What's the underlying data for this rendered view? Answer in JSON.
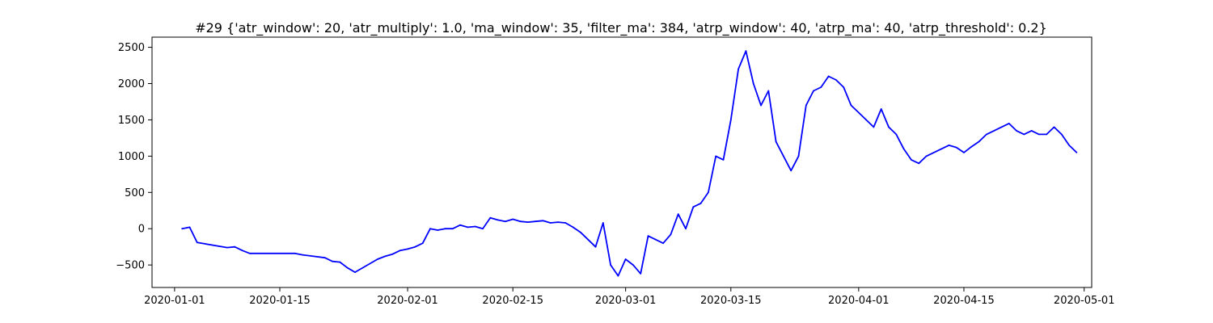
{
  "chart_data": {
    "type": "line",
    "title": "#29 {'atr_window': 20, 'atr_multiply': 1.0, 'ma_window': 35, 'filter_ma': 384, 'atrp_window': 40, 'atrp_ma': 40, 'atrp_threshold': 0.2}",
    "xlabel": "",
    "ylabel": "",
    "xlim": [
      "2019-12-29",
      "2020-05-02"
    ],
    "ylim": [
      -810,
      2640
    ],
    "x_ticks": [
      "2020-01-01",
      "2020-01-15",
      "2020-02-01",
      "2020-02-15",
      "2020-03-01",
      "2020-03-15",
      "2020-04-01",
      "2020-04-15",
      "2020-05-01"
    ],
    "y_ticks": [
      -500,
      0,
      500,
      1000,
      1500,
      2000,
      2500
    ],
    "grid": false,
    "colors": {
      "line": "#0000ff",
      "axes": "#000000",
      "background": "#ffffff"
    },
    "series": [
      {
        "x": [
          "2020-01-02",
          "2020-01-03",
          "2020-01-04",
          "2020-01-08",
          "2020-01-09",
          "2020-01-10",
          "2020-01-11",
          "2020-01-17",
          "2020-01-18",
          "2020-01-21",
          "2020-01-22",
          "2020-01-23",
          "2020-01-24",
          "2020-01-25",
          "2020-01-28",
          "2020-01-29",
          "2020-01-30",
          "2020-01-31",
          "2020-02-01",
          "2020-02-02",
          "2020-02-03",
          "2020-02-04",
          "2020-02-05",
          "2020-02-06",
          "2020-02-07",
          "2020-02-08",
          "2020-02-09",
          "2020-02-10",
          "2020-02-11",
          "2020-02-12",
          "2020-02-13",
          "2020-02-14",
          "2020-02-15",
          "2020-02-16",
          "2020-02-17",
          "2020-02-18",
          "2020-02-19",
          "2020-02-20",
          "2020-02-21",
          "2020-02-22",
          "2020-02-23",
          "2020-02-24",
          "2020-02-25",
          "2020-02-26",
          "2020-02-27",
          "2020-02-28",
          "2020-02-29",
          "2020-03-01",
          "2020-03-02",
          "2020-03-03",
          "2020-03-04",
          "2020-03-05",
          "2020-03-06",
          "2020-03-07",
          "2020-03-08",
          "2020-03-09",
          "2020-03-10",
          "2020-03-11",
          "2020-03-12",
          "2020-03-13",
          "2020-03-14",
          "2020-03-15",
          "2020-03-16",
          "2020-03-17",
          "2020-03-18",
          "2020-03-19",
          "2020-03-20",
          "2020-03-21",
          "2020-03-22",
          "2020-03-23",
          "2020-03-24",
          "2020-03-25",
          "2020-03-26",
          "2020-03-27",
          "2020-03-28",
          "2020-03-29",
          "2020-03-30",
          "2020-03-31",
          "2020-04-01",
          "2020-04-02",
          "2020-04-03",
          "2020-04-04",
          "2020-04-05",
          "2020-04-06",
          "2020-04-07",
          "2020-04-08",
          "2020-04-09",
          "2020-04-10",
          "2020-04-11",
          "2020-04-12",
          "2020-04-13",
          "2020-04-14",
          "2020-04-15",
          "2020-04-16",
          "2020-04-17",
          "2020-04-18",
          "2020-04-19",
          "2020-04-20",
          "2020-04-21",
          "2020-04-22",
          "2020-04-23",
          "2020-04-24",
          "2020-04-25",
          "2020-04-26",
          "2020-04-27",
          "2020-04-28",
          "2020-04-29",
          "2020-04-30"
        ],
        "values": [
          0,
          20,
          -190,
          -260,
          -250,
          -300,
          -340,
          -340,
          -360,
          -400,
          -450,
          -460,
          -540,
          -600,
          -420,
          -380,
          -350,
          -300,
          -280,
          -250,
          -200,
          0,
          -20,
          0,
          0,
          50,
          20,
          30,
          0,
          150,
          120,
          100,
          130,
          100,
          90,
          100,
          110,
          80,
          90,
          80,
          20,
          -50,
          -150,
          -250,
          80,
          -500,
          -650,
          -420,
          -500,
          -620,
          -100,
          -150,
          -200,
          -80,
          200,
          0,
          300,
          350,
          500,
          1000,
          950,
          1500,
          2200,
          2450,
          2000,
          1700,
          1900,
          1200,
          1000,
          800,
          1000,
          1700,
          1900,
          1950,
          2100,
          2050,
          1950,
          1700,
          1600,
          1500,
          1400,
          1650,
          1400,
          1300,
          1100,
          950,
          900,
          1000,
          1050,
          1100,
          1150,
          1120,
          1050,
          1130,
          1200,
          1300,
          1350,
          1400,
          1450,
          1350,
          1300,
          1350,
          1300,
          1300,
          1400,
          1300,
          1150,
          1050
        ]
      }
    ]
  }
}
